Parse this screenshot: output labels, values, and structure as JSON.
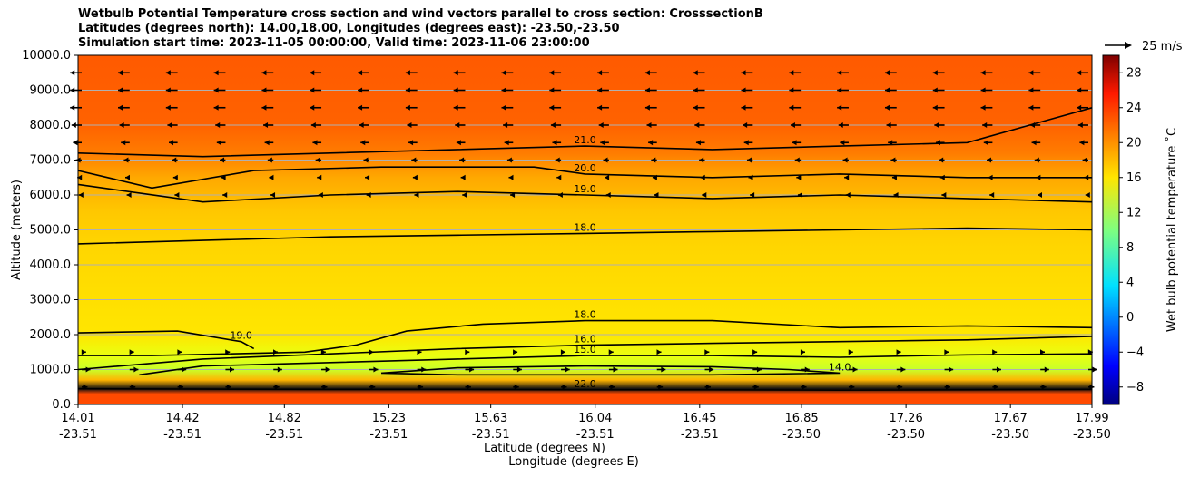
{
  "chart_data": {
    "type": "heatmap",
    "title_lines": [
      "Wetbulb Potential Temperature cross section and wind vectors parallel to cross section: CrosssectionB",
      "Latitudes (degrees north): 14.00,18.00, Longitudes (degrees east): -23.50,-23.50",
      "Simulation start time: 2023-11-05 00:00:00, Valid time: 2023-11-06 23:00:00"
    ],
    "xlabel_lat": "Latitude (degrees N)",
    "xlabel_lon": "Longitude (degrees E)",
    "ylabel": "Altitude (meters)",
    "ylim": [
      0,
      10000
    ],
    "y_ticks": [
      "0.0",
      "1000.0",
      "2000.0",
      "3000.0",
      "4000.0",
      "5000.0",
      "6000.0",
      "7000.0",
      "8000.0",
      "9000.0",
      "10000.0"
    ],
    "x_range": [
      14.01,
      17.99
    ],
    "x_ticks": [
      {
        "lat": "14.01",
        "lon": "-23.51"
      },
      {
        "lat": "14.42",
        "lon": "-23.51"
      },
      {
        "lat": "14.82",
        "lon": "-23.51"
      },
      {
        "lat": "15.23",
        "lon": "-23.51"
      },
      {
        "lat": "15.63",
        "lon": "-23.51"
      },
      {
        "lat": "16.04",
        "lon": "-23.51"
      },
      {
        "lat": "16.45",
        "lon": "-23.51"
      },
      {
        "lat": "16.85",
        "lon": "-23.50"
      },
      {
        "lat": "17.26",
        "lon": "-23.50"
      },
      {
        "lat": "17.67",
        "lon": "-23.50"
      },
      {
        "lat": "17.99",
        "lon": "-23.50"
      }
    ],
    "grid": "horizontal",
    "colorbar": {
      "label": "Wet bulb potential temperature ˚C",
      "ticks": [
        "−8",
        "−4",
        "0",
        "4",
        "8",
        "12",
        "16",
        "20",
        "24",
        "28"
      ],
      "range": [
        -10,
        30
      ],
      "colormap": "jet"
    },
    "wind_key": {
      "label": "25 m/s",
      "value": 25
    },
    "contours": [
      {
        "label": "22.0",
        "level": 22,
        "points": [
          [
            14.01,
            450
          ],
          [
            14.5,
            440
          ],
          [
            15,
            430
          ],
          [
            15.5,
            430
          ],
          [
            16,
            420
          ],
          [
            16.5,
            420
          ],
          [
            17,
            410
          ],
          [
            17.5,
            420
          ],
          [
            17.99,
            430
          ]
        ]
      },
      {
        "label": "14.0",
        "level": 14,
        "points": [
          [
            15.2,
            900
          ],
          [
            15.5,
            1050
          ],
          [
            16,
            1100
          ],
          [
            16.5,
            1080
          ],
          [
            16.8,
            1000
          ],
          [
            17,
            900
          ],
          [
            16.5,
            850
          ],
          [
            16,
            850
          ],
          [
            15.5,
            850
          ],
          [
            15.2,
            900
          ]
        ]
      },
      {
        "label": "15.0",
        "level": 15,
        "points": [
          [
            14.25,
            850
          ],
          [
            14.5,
            1100
          ],
          [
            15,
            1200
          ],
          [
            15.5,
            1300
          ],
          [
            16,
            1400
          ],
          [
            16.5,
            1400
          ],
          [
            17,
            1350
          ],
          [
            17.5,
            1420
          ],
          [
            17.99,
            1450
          ]
        ]
      },
      {
        "label": "16.0",
        "level": 16,
        "points": [
          [
            14.01,
            1000
          ],
          [
            14.5,
            1300
          ],
          [
            15,
            1450
          ],
          [
            15.5,
            1600
          ],
          [
            16,
            1700
          ],
          [
            16.5,
            1750
          ],
          [
            17,
            1800
          ],
          [
            17.5,
            1850
          ],
          [
            17.99,
            1950
          ]
        ]
      },
      {
        "label": "18.0",
        "level": 18,
        "points": [
          [
            14.01,
            1400
          ],
          [
            14.3,
            1400
          ],
          [
            14.9,
            1500
          ],
          [
            15.1,
            1700
          ],
          [
            15.3,
            2100
          ],
          [
            15.6,
            2300
          ],
          [
            16,
            2400
          ],
          [
            16.3,
            2400
          ],
          [
            16.5,
            2400
          ],
          [
            17,
            2200
          ],
          [
            17.5,
            2250
          ],
          [
            17.99,
            2200
          ]
        ]
      },
      {
        "label": "18.0",
        "level": 18,
        "points": [
          [
            14.01,
            4600
          ],
          [
            14.5,
            4700
          ],
          [
            15,
            4800
          ],
          [
            15.5,
            4850
          ],
          [
            16,
            4900
          ],
          [
            16.5,
            4950
          ],
          [
            17,
            5000
          ],
          [
            17.5,
            5050
          ],
          [
            17.99,
            5000
          ]
        ]
      },
      {
        "label": "19.0",
        "level": 19,
        "points": [
          [
            14.01,
            2050
          ],
          [
            14.4,
            2100
          ],
          [
            14.65,
            1800
          ],
          [
            14.7,
            1600
          ]
        ]
      },
      {
        "label": "19.0",
        "level": 19,
        "points": [
          [
            14.01,
            6300
          ],
          [
            14.5,
            5800
          ],
          [
            15,
            6000
          ],
          [
            15.5,
            6100
          ],
          [
            16,
            6000
          ],
          [
            16.5,
            5900
          ],
          [
            17,
            6000
          ],
          [
            17.5,
            5900
          ],
          [
            17.99,
            5800
          ]
        ]
      },
      {
        "label": "20.0",
        "level": 20,
        "points": [
          [
            14.01,
            6700
          ],
          [
            14.3,
            6200
          ],
          [
            14.7,
            6700
          ],
          [
            15.2,
            6800
          ],
          [
            15.8,
            6800
          ],
          [
            16,
            6600
          ],
          [
            16.5,
            6500
          ],
          [
            17,
            6600
          ],
          [
            17.5,
            6500
          ],
          [
            17.99,
            6500
          ]
        ]
      },
      {
        "label": "21.0",
        "level": 21,
        "points": [
          [
            14.01,
            7200
          ],
          [
            14.5,
            7100
          ],
          [
            15,
            7200
          ],
          [
            15.5,
            7300
          ],
          [
            16,
            7400
          ],
          [
            16.5,
            7300
          ],
          [
            17,
            7400
          ],
          [
            17.5,
            7500
          ],
          [
            17.99,
            8500
          ]
        ]
      }
    ],
    "wind_arrows": [
      {
        "level": 9500,
        "u": -8
      },
      {
        "level": 9000,
        "u": -8
      },
      {
        "level": 8500,
        "u": -8
      },
      {
        "level": 8000,
        "u": -7
      },
      {
        "level": 7500,
        "u": -6
      },
      {
        "level": 7000,
        "u": -4
      },
      {
        "level": 6500,
        "u": -3
      },
      {
        "level": 6000,
        "u": -2
      },
      {
        "level": 1500,
        "u": 3
      },
      {
        "level": 1000,
        "u": 6
      },
      {
        "level": 500,
        "u": 4
      }
    ]
  }
}
